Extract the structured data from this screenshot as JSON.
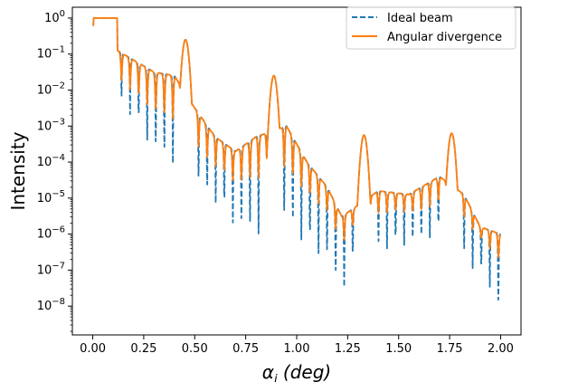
{
  "chart_data": {
    "type": "line",
    "title": "",
    "xlabel_base": "α",
    "xlabel_sub": "i",
    "xlabel_rest": " (deg)",
    "ylabel": "Intensity",
    "xlim": [
      -0.1,
      2.1
    ],
    "ylim_log10": [
      -8.8,
      0.3
    ],
    "yscale": "log",
    "grid": false,
    "legend_position": "top-right",
    "x_ticks": [
      0.0,
      0.25,
      0.5,
      0.75,
      1.0,
      1.25,
      1.5,
      1.75,
      2.0
    ],
    "x_tick_labels": [
      "0.00",
      "0.25",
      "0.50",
      "0.75",
      "1.00",
      "1.25",
      "1.50",
      "1.75",
      "2.00"
    ],
    "y_tick_exponents": [
      0,
      -1,
      -2,
      -3,
      -4,
      -5,
      -6,
      -7,
      -8
    ],
    "y_tick_base": "10",
    "series": [
      {
        "name": "Ideal beam",
        "color": "#1f77b4",
        "style": "dashed",
        "peaks": [
          [
            0.455,
            -0.6
          ],
          [
            0.888,
            -1.6
          ],
          [
            1.33,
            -3.25
          ],
          [
            1.76,
            -3.2
          ]
        ],
        "envelope": [
          [
            0.12,
            -0.9
          ],
          [
            0.18,
            -1.1
          ],
          [
            0.3,
            -1.5
          ],
          [
            0.4,
            -1.6
          ],
          [
            0.5,
            -2.5
          ],
          [
            0.6,
            -3.3
          ],
          [
            0.7,
            -3.7
          ],
          [
            0.8,
            -3.3
          ],
          [
            0.95,
            -3.0
          ],
          [
            1.05,
            -4.0
          ],
          [
            1.15,
            -4.7
          ],
          [
            1.22,
            -5.5
          ],
          [
            1.25,
            -5.4
          ],
          [
            1.4,
            -4.8
          ],
          [
            1.55,
            -4.9
          ],
          [
            1.7,
            -4.4
          ],
          [
            1.82,
            -4.9
          ],
          [
            1.9,
            -5.8
          ],
          [
            2.0,
            -6.0
          ]
        ],
        "fringe_period": 0.042,
        "dip_floor": [
          [
            0.14,
            -2.4
          ],
          [
            0.3,
            -3.8
          ],
          [
            0.42,
            -4.3
          ],
          [
            0.55,
            -4.9
          ],
          [
            0.7,
            -5.9
          ],
          [
            0.8,
            -6.2
          ],
          [
            0.95,
            -5.8
          ],
          [
            1.05,
            -6.5
          ],
          [
            1.15,
            -6.8
          ],
          [
            1.22,
            -7.8
          ],
          [
            1.3,
            -6.5
          ],
          [
            1.45,
            -6.5
          ],
          [
            1.6,
            -6.3
          ],
          [
            1.75,
            -6.0
          ],
          [
            1.85,
            -7.0
          ],
          [
            1.93,
            -7.3
          ],
          [
            2.0,
            -8.4
          ]
        ]
      },
      {
        "name": "Angular divergence",
        "color": "#ff7f0e",
        "style": "solid",
        "peaks": [
          [
            0.455,
            -0.6
          ],
          [
            0.888,
            -1.6
          ],
          [
            1.33,
            -3.25
          ],
          [
            1.76,
            -3.2
          ]
        ],
        "envelope": [
          [
            0.12,
            -0.9
          ],
          [
            0.18,
            -1.1
          ],
          [
            0.3,
            -1.5
          ],
          [
            0.4,
            -1.6
          ],
          [
            0.5,
            -2.5
          ],
          [
            0.6,
            -3.3
          ],
          [
            0.7,
            -3.7
          ],
          [
            0.8,
            -3.3
          ],
          [
            0.95,
            -3.0
          ],
          [
            1.05,
            -4.0
          ],
          [
            1.15,
            -4.7
          ],
          [
            1.22,
            -5.5
          ],
          [
            1.25,
            -5.4
          ],
          [
            1.4,
            -4.8
          ],
          [
            1.55,
            -4.9
          ],
          [
            1.7,
            -4.4
          ],
          [
            1.82,
            -4.9
          ],
          [
            1.9,
            -5.8
          ],
          [
            2.0,
            -6.0
          ]
        ],
        "fringe_period": 0.042,
        "dip_floor": [
          [
            0.14,
            -1.8
          ],
          [
            0.3,
            -2.6
          ],
          [
            0.42,
            -2.9
          ],
          [
            0.55,
            -3.9
          ],
          [
            0.7,
            -4.6
          ],
          [
            0.8,
            -4.5
          ],
          [
            0.95,
            -4.2
          ],
          [
            1.05,
            -4.9
          ],
          [
            1.15,
            -5.4
          ],
          [
            1.22,
            -6.3
          ],
          [
            1.3,
            -5.6
          ],
          [
            1.45,
            -5.4
          ],
          [
            1.6,
            -5.4
          ],
          [
            1.75,
            -5.0
          ],
          [
            1.85,
            -5.8
          ],
          [
            1.93,
            -6.3
          ],
          [
            2.0,
            -6.8
          ]
        ]
      }
    ],
    "plateau": {
      "x_start": 0.0,
      "x_end": 0.12,
      "log10_value": 0.0
    }
  }
}
